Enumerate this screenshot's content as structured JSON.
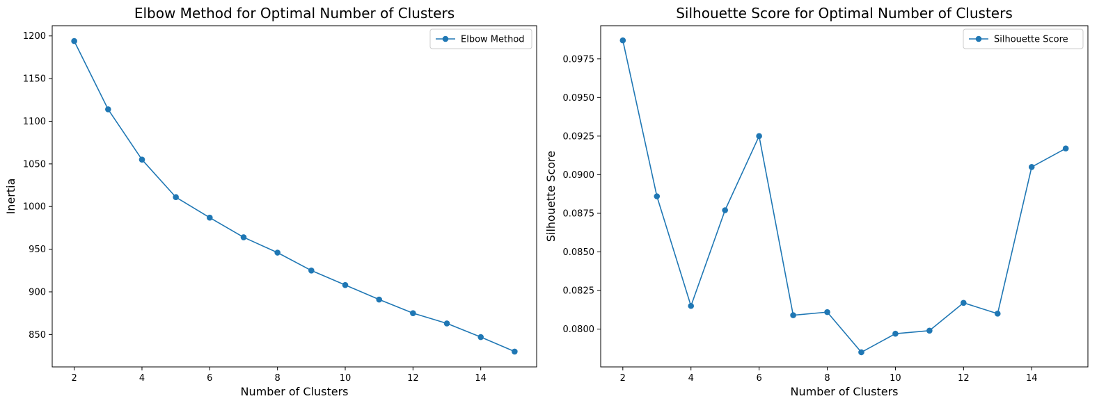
{
  "chart_data": [
    {
      "type": "line",
      "title": "Elbow Method for Optimal Number of Clusters",
      "xlabel": "Number of Clusters",
      "ylabel": "Inertia",
      "x": [
        2,
        3,
        4,
        5,
        6,
        7,
        8,
        9,
        10,
        11,
        12,
        13,
        14,
        15
      ],
      "series": [
        {
          "name": "Elbow Method",
          "values": [
            1194,
            1114,
            1055,
            1011,
            987,
            964,
            946,
            925,
            908,
            891,
            875,
            863,
            847,
            830
          ]
        }
      ],
      "xlim": [
        1.35,
        15.65
      ],
      "ylim": [
        812,
        1212
      ],
      "xticks": [
        2,
        4,
        6,
        8,
        10,
        12,
        14
      ],
      "yticks": [
        850,
        900,
        950,
        1000,
        1050,
        1100,
        1150,
        1200
      ],
      "ytick_labels": [
        "850",
        "900",
        "950",
        "1000",
        "1050",
        "1100",
        "1150",
        "1200"
      ],
      "legend_position": "top-right",
      "grid": false,
      "color": "#1f77b4"
    },
    {
      "type": "line",
      "title": "Silhouette Score for Optimal Number of Clusters",
      "xlabel": "Number of Clusters",
      "ylabel": "Silhouette Score",
      "x": [
        2,
        3,
        4,
        5,
        6,
        7,
        8,
        9,
        10,
        11,
        12,
        13,
        14,
        15
      ],
      "series": [
        {
          "name": "Silhouette Score",
          "values": [
            0.0987,
            0.0886,
            0.0815,
            0.0877,
            0.0925,
            0.0809,
            0.0811,
            0.0785,
            0.0797,
            0.0799,
            0.0817,
            0.081,
            0.0905,
            0.0917
          ]
        }
      ],
      "xlim": [
        1.35,
        15.65
      ],
      "ylim": [
        0.07755,
        0.09965
      ],
      "xticks": [
        2,
        4,
        6,
        8,
        10,
        12,
        14
      ],
      "yticks": [
        0.08,
        0.0825,
        0.085,
        0.0875,
        0.09,
        0.0925,
        0.095,
        0.0975
      ],
      "ytick_labels": [
        "0.0800",
        "0.0825",
        "0.0850",
        "0.0875",
        "0.0900",
        "0.0925",
        "0.0950",
        "0.0975"
      ],
      "legend_position": "top-right",
      "grid": false,
      "color": "#1f77b4"
    }
  ]
}
